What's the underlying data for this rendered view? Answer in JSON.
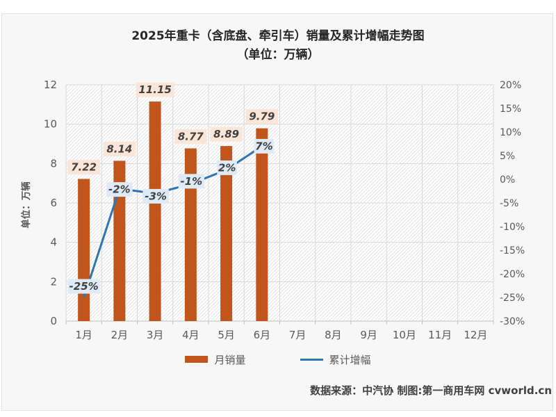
{
  "header": {
    "title_line1": "2025年重卡（含底盘、牵引车）销量及累计增幅走势图",
    "title_line2": "（单位：万辆）"
  },
  "footer": {
    "source_text": "数据来源：中汽协  制图:第一商用车网 cvworld.cn"
  },
  "colors": {
    "bar": "#C0561B",
    "line": "#2E75B6",
    "bar_label_bg": "#FBE5D6",
    "line_label_bg": "#DEEBF7",
    "label_text": "#404040",
    "axis_text": "#595959",
    "gridline": "#d9d9d9",
    "axis_line": "#bfbfbf",
    "card_bg": "#f7f7f7"
  },
  "chart_data": {
    "type": "combo-bar-line",
    "title": "2025年重卡（含底盘、牵引车）销量及累计增幅走势图",
    "subtitle": "（单位：万辆）",
    "grid": true,
    "plot_background": "diagonal-hatch",
    "categories": [
      "1月",
      "2月",
      "3月",
      "4月",
      "5月",
      "6月",
      "7月",
      "8月",
      "9月",
      "10月",
      "11月",
      "12月"
    ],
    "series": [
      {
        "name": "月销量",
        "type": "bar",
        "axis": "left",
        "color": "#C0561B",
        "values": [
          7.22,
          8.14,
          11.15,
          8.77,
          8.89,
          9.79,
          null,
          null,
          null,
          null,
          null,
          null
        ],
        "labels": [
          "7.22",
          "8.14",
          "11.15",
          "8.77",
          "8.89",
          "9.79"
        ],
        "label_bg": "#FBE5D6"
      },
      {
        "name": "累计增幅",
        "type": "line",
        "axis": "right",
        "color": "#2E75B6",
        "values_percent": [
          -25,
          -2,
          -3,
          -1,
          2,
          7
        ],
        "labels": [
          "-25%",
          "-2%",
          "-3%",
          "-1%",
          "2%",
          "7%"
        ],
        "label_bg": "#DEEBF7"
      }
    ],
    "left_axis": {
      "title": "单位：万辆",
      "min": 0,
      "max": 12,
      "tick_step": 2,
      "ticks": [
        "0",
        "2",
        "4",
        "6",
        "8",
        "10",
        "12"
      ]
    },
    "right_axis": {
      "min": -30,
      "max": 20,
      "tick_step": 5,
      "ticks_top_to_bottom": [
        "20%",
        "15%",
        "10%",
        "5%",
        "0%",
        "-5%",
        "-10%",
        "-15%",
        "-20%",
        "-25%",
        "-30%"
      ]
    },
    "legend": [
      {
        "label": "月销量",
        "swatch": "bar"
      },
      {
        "label": "累计增幅",
        "swatch": "line"
      }
    ],
    "legend_position": "bottom"
  }
}
